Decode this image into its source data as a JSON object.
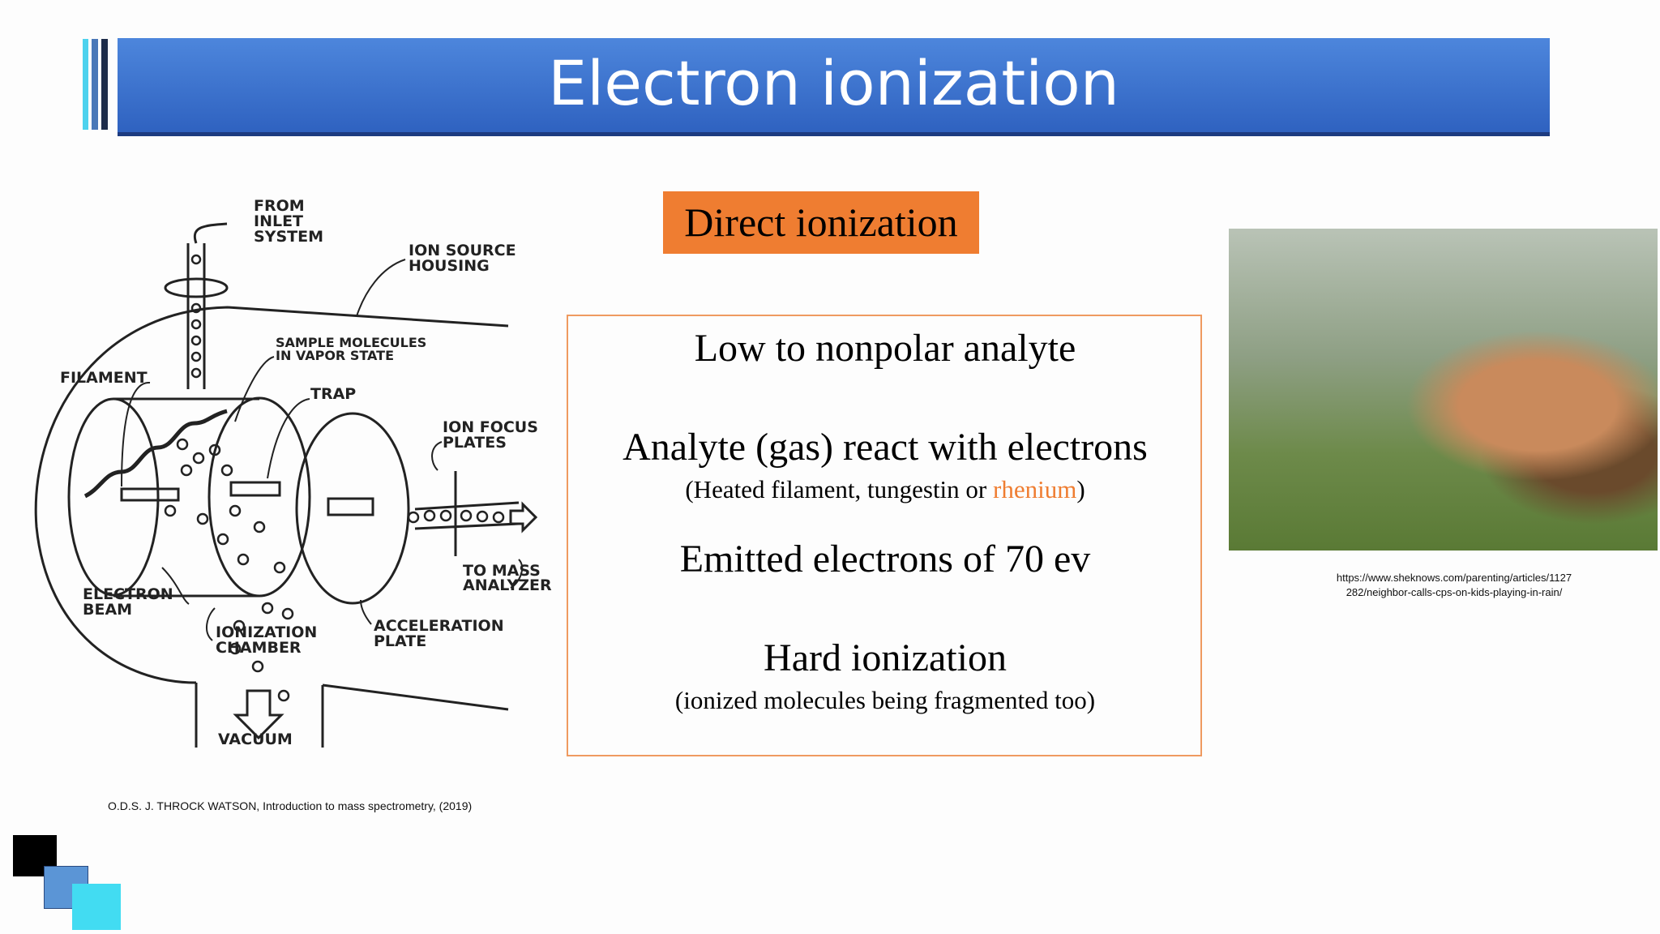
{
  "header": {
    "title": "Electron ionization"
  },
  "tag": "Direct ionization",
  "points": [
    {
      "text": "Low to nonpolar analyte"
    },
    {
      "text": "Analyte (gas) react with electrons",
      "note": [
        "(Heated filament, tungestin  or ",
        "rhenium",
        ")"
      ]
    },
    {
      "text": "Emitted electrons of 70 ev"
    },
    {
      "text": "Hard ionization",
      "note": [
        "(ionized molecules being fragmented too)"
      ]
    }
  ],
  "diagram": {
    "labels": [
      {
        "lines": [
          "FROM",
          "INLET",
          "SYSTEM"
        ]
      },
      {
        "lines": [
          "ION SOURCE",
          "HOUSING"
        ]
      },
      {
        "lines": [
          "SAMPLE MOLECULES",
          "IN VAPOR STATE"
        ]
      },
      {
        "lines": [
          "FILAMENT"
        ]
      },
      {
        "lines": [
          "TRAP"
        ]
      },
      {
        "lines": [
          "ION FOCUS",
          "PLATES"
        ]
      },
      {
        "lines": [
          "TO MASS",
          "ANALYZER"
        ]
      },
      {
        "lines": [
          "ELECTRON",
          "BEAM"
        ]
      },
      {
        "lines": [
          "IONIZATION",
          "CHAMBER"
        ]
      },
      {
        "lines": [
          "ACCELERATION",
          "PLATE"
        ]
      },
      {
        "lines": [
          "VACUUM"
        ]
      }
    ]
  },
  "citation": "O.D.S. J. THROCK WATSON, Introduction to mass spectrometry, (2019)",
  "photo_source": [
    "https://www.sheknows.com/parenting/articles/1127",
    "282/neighbor-calls-cps-on-kids-playing-in-rain/"
  ]
}
